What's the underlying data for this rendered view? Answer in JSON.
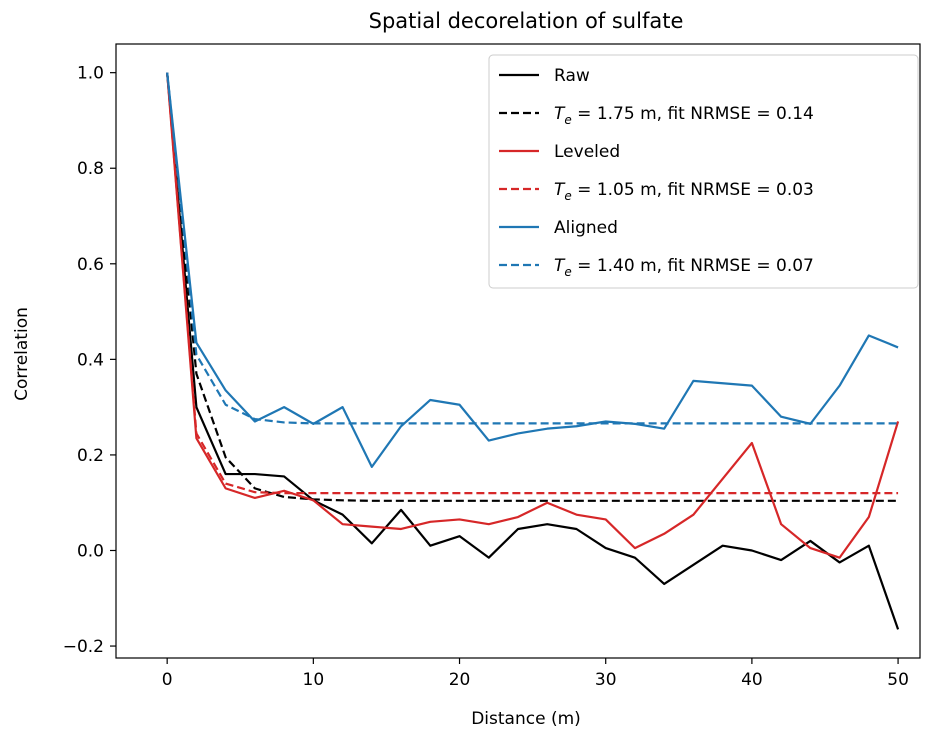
{
  "chart_data": {
    "type": "line",
    "title": "Spatial decorelation of sulfate",
    "xlabel": "Distance (m)",
    "ylabel": "Correlation",
    "xlim": [
      -3.5,
      51.5
    ],
    "ylim": [
      -0.225,
      1.06
    ],
    "xticks": [
      0,
      10,
      20,
      30,
      40,
      50
    ],
    "yticks": [
      -0.2,
      0.0,
      0.2,
      0.4,
      0.6,
      0.8,
      1.0
    ],
    "xtick_labels": [
      "0",
      "10",
      "20",
      "30",
      "40",
      "50"
    ],
    "ytick_labels": [
      "−0.2",
      "0.0",
      "0.2",
      "0.4",
      "0.6",
      "0.8",
      "1.0"
    ],
    "grid": false,
    "legend_position": "top-right",
    "x": [
      0,
      2,
      4,
      6,
      8,
      10,
      12,
      14,
      16,
      18,
      20,
      22,
      24,
      26,
      28,
      30,
      32,
      34,
      36,
      38,
      40,
      42,
      44,
      46,
      48,
      50
    ],
    "series": [
      {
        "name": "Raw",
        "style": "solid",
        "color": "#000000",
        "values": [
          1.0,
          0.3,
          0.16,
          0.16,
          0.155,
          0.105,
          0.075,
          0.015,
          0.085,
          0.01,
          0.03,
          -0.015,
          0.045,
          0.055,
          0.045,
          0.005,
          -0.015,
          -0.07,
          -0.03,
          0.01,
          0.0,
          -0.02,
          0.02,
          -0.025,
          0.01,
          -0.165
        ]
      },
      {
        "name_prefix": "T",
        "name_sub": "e",
        "name_suffix": " = 1.75 m, fit NRMSE = 0.14",
        "style": "dashed",
        "color": "#000000",
        "values": [
          1.0,
          0.37,
          0.195,
          0.13,
          0.112,
          0.107,
          0.105,
          0.104,
          0.104,
          0.104,
          0.104,
          0.104,
          0.104,
          0.104,
          0.104,
          0.104,
          0.104,
          0.104,
          0.104,
          0.104,
          0.104,
          0.104,
          0.104,
          0.104,
          0.104,
          0.104
        ]
      },
      {
        "name": "Leveled",
        "style": "solid",
        "color": "#d62728",
        "values": [
          1.0,
          0.235,
          0.13,
          0.11,
          0.125,
          0.105,
          0.055,
          0.05,
          0.045,
          0.06,
          0.065,
          0.055,
          0.07,
          0.1,
          0.075,
          0.065,
          0.005,
          0.035,
          0.075,
          0.15,
          0.225,
          0.055,
          0.005,
          -0.015,
          0.07,
          0.27
        ]
      },
      {
        "name_prefix": "T",
        "name_sub": "e",
        "name_suffix": " = 1.05 m, fit NRMSE = 0.03",
        "style": "dashed",
        "color": "#d62728",
        "values": [
          1.0,
          0.245,
          0.14,
          0.122,
          0.12,
          0.12,
          0.12,
          0.12,
          0.12,
          0.12,
          0.12,
          0.12,
          0.12,
          0.12,
          0.12,
          0.12,
          0.12,
          0.12,
          0.12,
          0.12,
          0.12,
          0.12,
          0.12,
          0.12,
          0.12,
          0.12
        ]
      },
      {
        "name": "Aligned",
        "style": "solid",
        "color": "#1f77b4",
        "values": [
          1.0,
          0.435,
          0.335,
          0.27,
          0.3,
          0.265,
          0.3,
          0.175,
          0.26,
          0.315,
          0.305,
          0.23,
          0.245,
          0.255,
          0.26,
          0.27,
          0.265,
          0.255,
          0.355,
          0.35,
          0.345,
          0.28,
          0.265,
          0.345,
          0.45,
          0.425
        ]
      },
      {
        "name_prefix": "T",
        "name_sub": "e",
        "name_suffix": " = 1.40 m, fit NRMSE = 0.07",
        "style": "dashed",
        "color": "#1f77b4",
        "values": [
          1.0,
          0.41,
          0.305,
          0.275,
          0.268,
          0.266,
          0.266,
          0.266,
          0.266,
          0.266,
          0.266,
          0.266,
          0.266,
          0.266,
          0.266,
          0.266,
          0.266,
          0.266,
          0.266,
          0.266,
          0.266,
          0.266,
          0.266,
          0.266,
          0.266,
          0.266
        ]
      }
    ]
  }
}
